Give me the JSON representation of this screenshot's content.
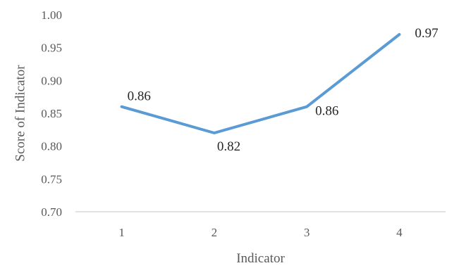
{
  "chart_data": {
    "type": "line",
    "title": "",
    "xlabel": "Indicator",
    "ylabel": "Score of Indicator",
    "categories": [
      "1",
      "2",
      "3",
      "4"
    ],
    "series": [
      {
        "values": [
          0.86,
          0.82,
          0.86,
          0.97
        ],
        "data_labels": [
          "0.86",
          "0.82",
          "0.86",
          "0.97"
        ]
      }
    ],
    "ylim": [
      0.7,
      1.0
    ],
    "yticks": [
      "0.70",
      "0.75",
      "0.80",
      "0.85",
      "0.90",
      "0.95",
      "1.00"
    ],
    "grid": false,
    "legend": "none",
    "colors": {
      "line": "#5B9BD5",
      "axis": "#D9D9D9"
    }
  }
}
